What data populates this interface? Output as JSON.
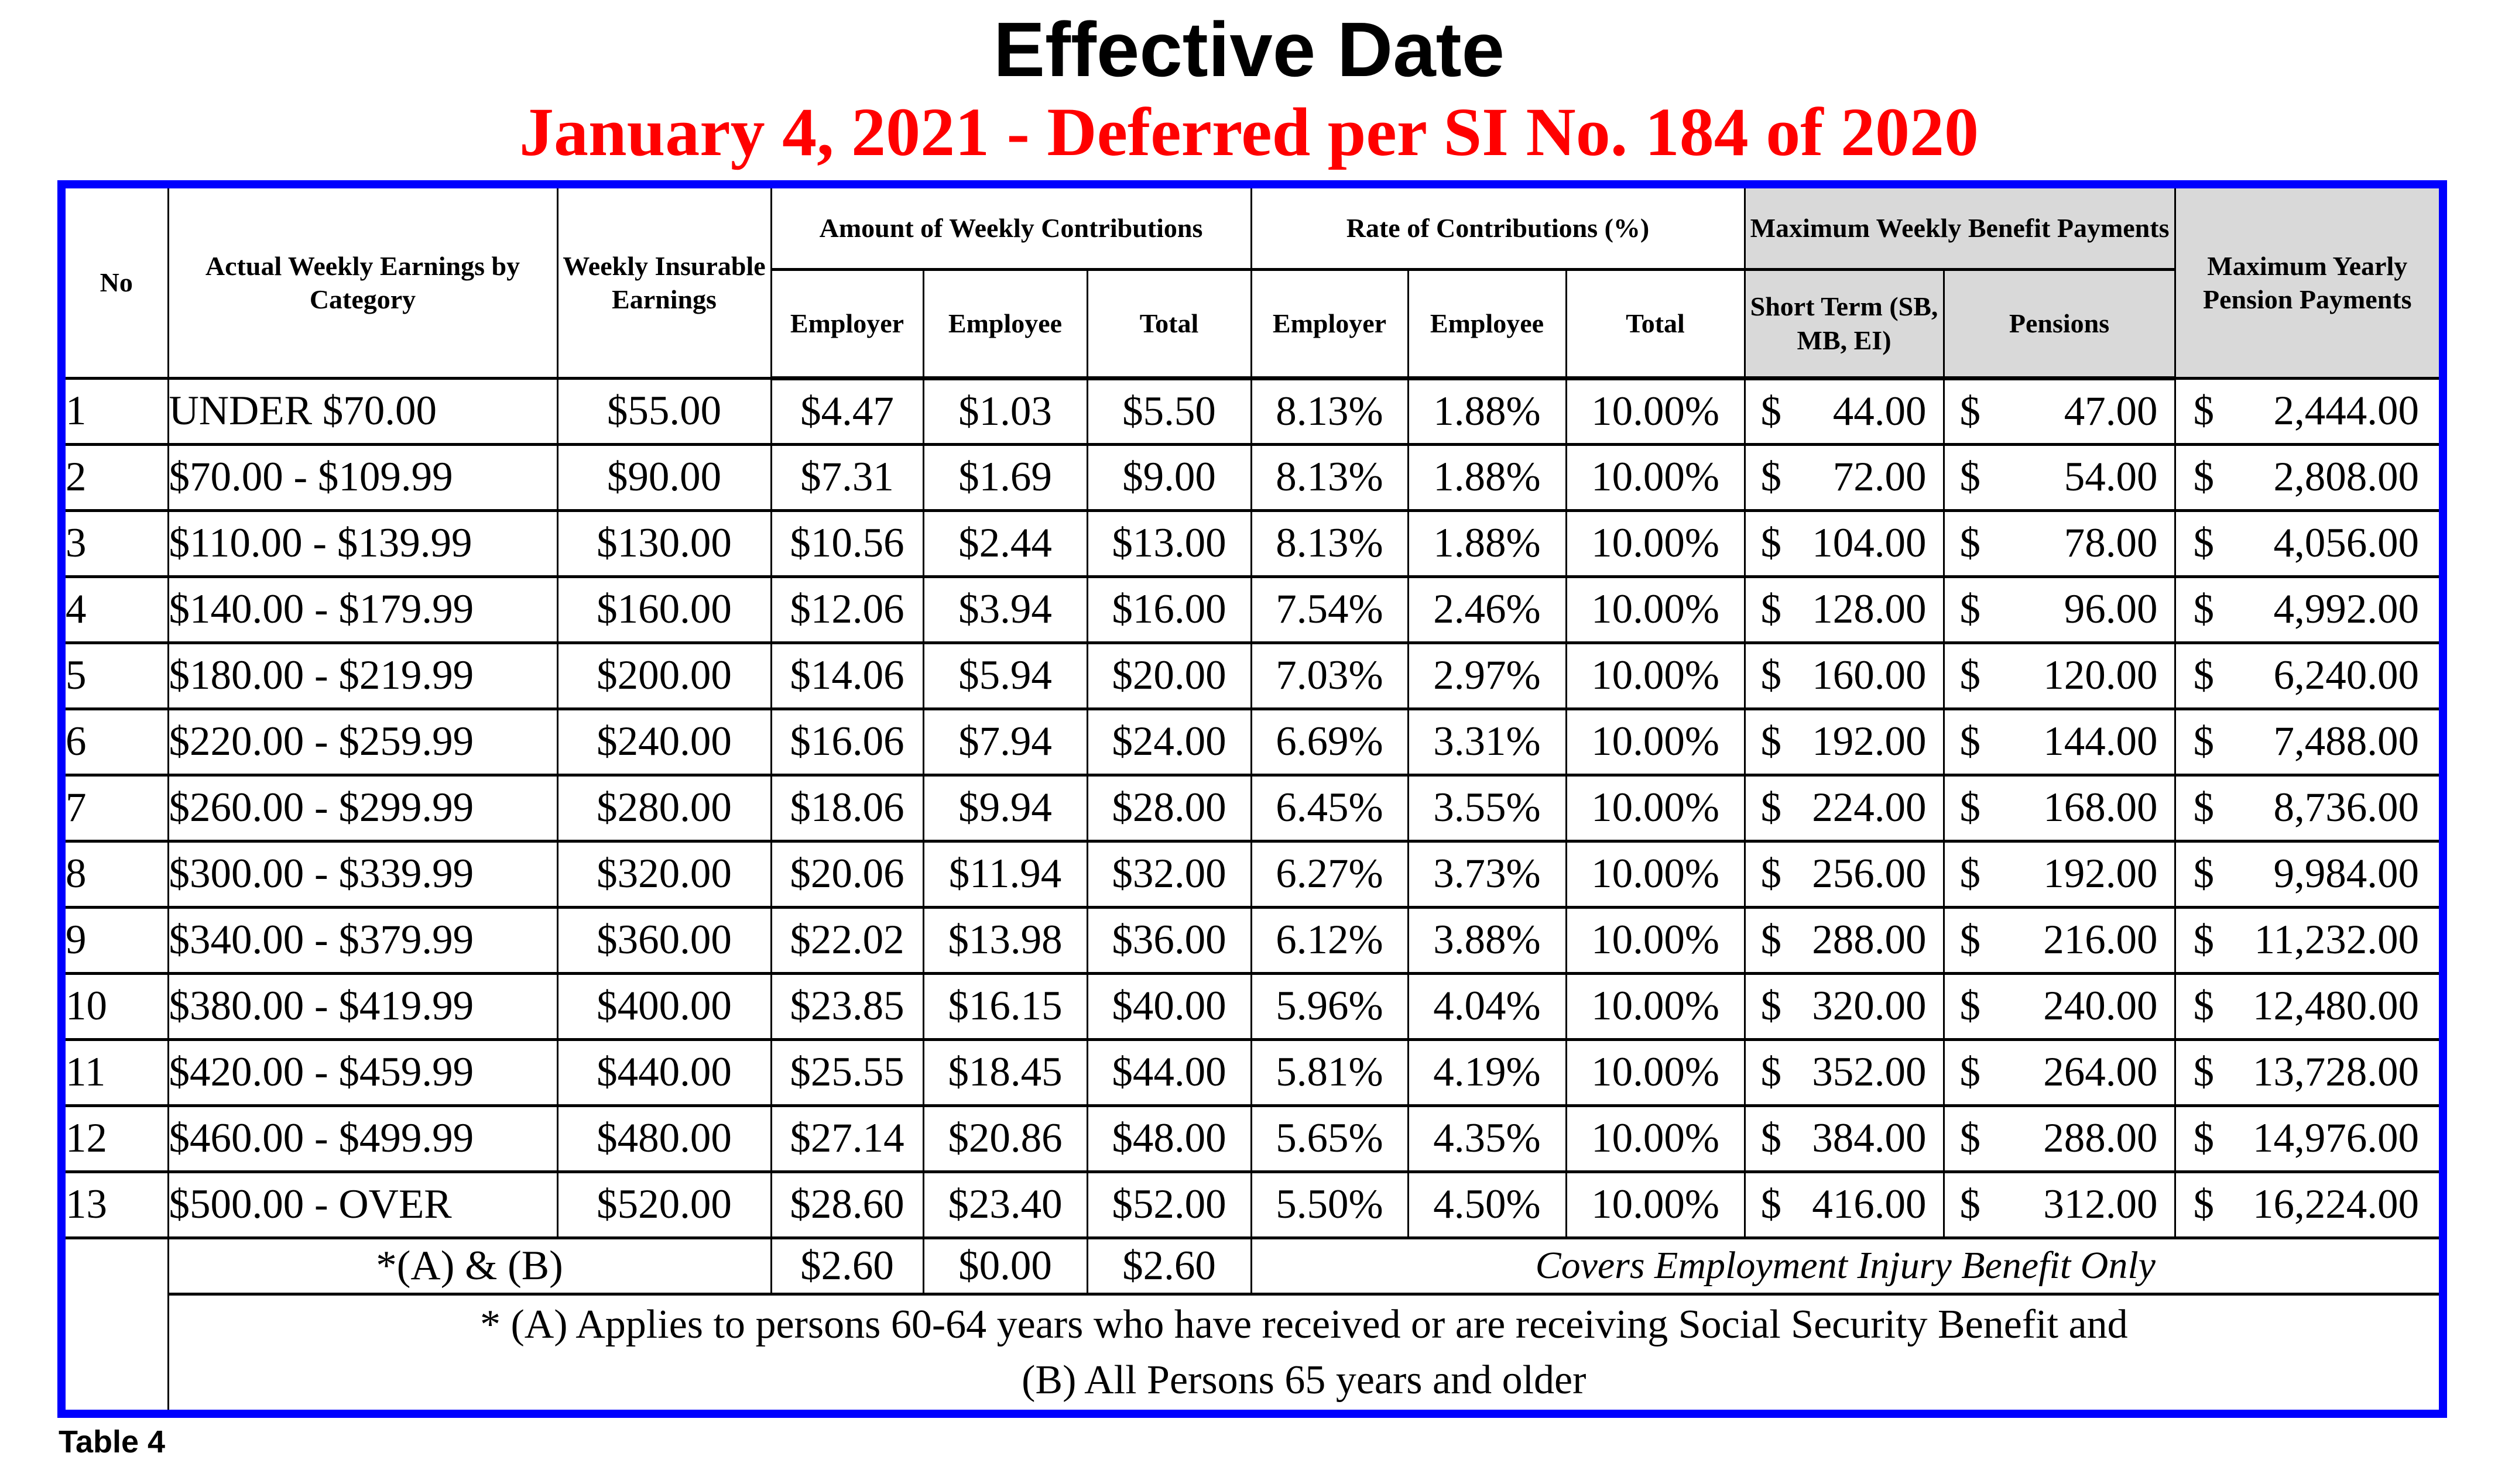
{
  "title": "Effective Date",
  "subtitle": "January 4, 2021 - Deferred per SI No. 184 of 2020",
  "table_label": "Table 4",
  "currency": "$",
  "colors": {
    "outer_border_blue": "#0000fe",
    "header_gray": "#d9d9d9",
    "subtitle_red": "#ff0000",
    "grid_black": "#000000"
  },
  "header": {
    "no": "No",
    "category": "Actual Weekly Earnings by Category",
    "wie": "Weekly Insurable Earnings",
    "amount_group": "Amount of Weekly Contributions",
    "rate_group": "Rate of Contributions (%)",
    "max_weekly_group": "Maximum Weekly Benefit Payments",
    "max_yearly": "Maximum Yearly Pension Payments",
    "employer": "Employer",
    "employee": "Employee",
    "total": "Total",
    "short_term": "Short Term (SB, MB, EI)",
    "pensions": "Pensions"
  },
  "rows": [
    {
      "no": "1",
      "category": "UNDER $70.00",
      "wie": "$55.00",
      "amounts": [
        "$4.47",
        "$1.03",
        "$5.50"
      ],
      "rates": [
        "8.13%",
        "1.88%",
        "10.00%"
      ],
      "short_term": "44.00",
      "pensions": "47.00",
      "yearly": "2,444.00"
    },
    {
      "no": "2",
      "category": "$70.00 - $109.99",
      "wie": "$90.00",
      "amounts": [
        "$7.31",
        "$1.69",
        "$9.00"
      ],
      "rates": [
        "8.13%",
        "1.88%",
        "10.00%"
      ],
      "short_term": "72.00",
      "pensions": "54.00",
      "yearly": "2,808.00"
    },
    {
      "no": "3",
      "category": "$110.00 - $139.99",
      "wie": "$130.00",
      "amounts": [
        "$10.56",
        "$2.44",
        "$13.00"
      ],
      "rates": [
        "8.13%",
        "1.88%",
        "10.00%"
      ],
      "short_term": "104.00",
      "pensions": "78.00",
      "yearly": "4,056.00"
    },
    {
      "no": "4",
      "category": "$140.00 - $179.99",
      "wie": "$160.00",
      "amounts": [
        "$12.06",
        "$3.94",
        "$16.00"
      ],
      "rates": [
        "7.54%",
        "2.46%",
        "10.00%"
      ],
      "short_term": "128.00",
      "pensions": "96.00",
      "yearly": "4,992.00"
    },
    {
      "no": "5",
      "category": "$180.00 - $219.99",
      "wie": "$200.00",
      "amounts": [
        "$14.06",
        "$5.94",
        "$20.00"
      ],
      "rates": [
        "7.03%",
        "2.97%",
        "10.00%"
      ],
      "short_term": "160.00",
      "pensions": "120.00",
      "yearly": "6,240.00"
    },
    {
      "no": "6",
      "category": "$220.00 - $259.99",
      "wie": "$240.00",
      "amounts": [
        "$16.06",
        "$7.94",
        "$24.00"
      ],
      "rates": [
        "6.69%",
        "3.31%",
        "10.00%"
      ],
      "short_term": "192.00",
      "pensions": "144.00",
      "yearly": "7,488.00"
    },
    {
      "no": "7",
      "category": "$260.00 - $299.99",
      "wie": "$280.00",
      "amounts": [
        "$18.06",
        "$9.94",
        "$28.00"
      ],
      "rates": [
        "6.45%",
        "3.55%",
        "10.00%"
      ],
      "short_term": "224.00",
      "pensions": "168.00",
      "yearly": "8,736.00"
    },
    {
      "no": "8",
      "category": "$300.00 - $339.99",
      "wie": "$320.00",
      "amounts": [
        "$20.06",
        "$11.94",
        "$32.00"
      ],
      "rates": [
        "6.27%",
        "3.73%",
        "10.00%"
      ],
      "short_term": "256.00",
      "pensions": "192.00",
      "yearly": "9,984.00"
    },
    {
      "no": "9",
      "category": "$340.00 - $379.99",
      "wie": "$360.00",
      "amounts": [
        "$22.02",
        "$13.98",
        "$36.00"
      ],
      "rates": [
        "6.12%",
        "3.88%",
        "10.00%"
      ],
      "short_term": "288.00",
      "pensions": "216.00",
      "yearly": "11,232.00"
    },
    {
      "no": "10",
      "category": "$380.00 - $419.99",
      "wie": "$400.00",
      "amounts": [
        "$23.85",
        "$16.15",
        "$40.00"
      ],
      "rates": [
        "5.96%",
        "4.04%",
        "10.00%"
      ],
      "short_term": "320.00",
      "pensions": "240.00",
      "yearly": "12,480.00"
    },
    {
      "no": "11",
      "category": "$420.00 - $459.99",
      "wie": "$440.00",
      "amounts": [
        "$25.55",
        "$18.45",
        "$44.00"
      ],
      "rates": [
        "5.81%",
        "4.19%",
        "10.00%"
      ],
      "short_term": "352.00",
      "pensions": "264.00",
      "yearly": "13,728.00"
    },
    {
      "no": "12",
      "category": "$460.00 - $499.99",
      "wie": "$480.00",
      "amounts": [
        "$27.14",
        "$20.86",
        "$48.00"
      ],
      "rates": [
        "5.65%",
        "4.35%",
        "10.00%"
      ],
      "short_term": "384.00",
      "pensions": "288.00",
      "yearly": "14,976.00"
    },
    {
      "no": "13",
      "category": "$500.00 - OVER",
      "wie": "$520.00",
      "amounts": [
        "$28.60",
        "$23.40",
        "$52.00"
      ],
      "rates": [
        "5.50%",
        "4.50%",
        "10.00%"
      ],
      "short_term": "416.00",
      "pensions": "312.00",
      "yearly": "16,224.00"
    }
  ],
  "footer": {
    "ab_label": "*(A) & (B)",
    "ab_employer": "$2.60",
    "ab_employee": "$0.00",
    "ab_total": "$2.60",
    "covers_note": "Covers Employment Injury Benefit Only",
    "note_line1": "* (A) Applies to persons 60-64 years who have received or are receiving Social Security Benefit and",
    "note_line2": "(B) All Persons 65 years and older"
  }
}
